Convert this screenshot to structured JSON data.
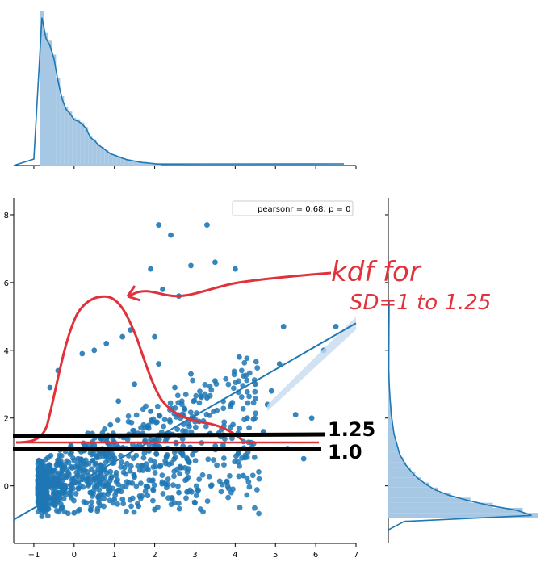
{
  "colors": {
    "scatter": "#1f77b4",
    "hist_fill": "#a6c8e4",
    "kde_line": "#1f77b4",
    "ci_band": "#c6dbef",
    "annotation_red": "#e0323a",
    "annotation_black": "#000000"
  },
  "chart_data": [
    {
      "type": "scatter",
      "title": "",
      "xlabel": "",
      "ylabel": "",
      "xlim": [
        -1.5,
        7.0
      ],
      "ylim": [
        -1.7,
        8.5
      ],
      "xticks": [
        -1,
        0,
        1,
        2,
        3,
        4,
        5,
        6,
        7
      ],
      "yticks": [
        0,
        2,
        4,
        6,
        8
      ],
      "legend_text": "pearsonr = 0.68; p = 0",
      "legend_position": "top-right",
      "regression_line": {
        "x": [
          -1.5,
          7.0
        ],
        "y": [
          -1.0,
          4.8
        ]
      },
      "points": [
        [
          -0.8,
          -0.9
        ],
        [
          -0.5,
          -0.3
        ],
        [
          -0.2,
          0.3
        ],
        [
          0.1,
          0.8
        ],
        [
          0.3,
          -0.5
        ],
        [
          0.5,
          1.2
        ],
        [
          0.7,
          0.2
        ],
        [
          0.9,
          1.8
        ],
        [
          1.1,
          2.5
        ],
        [
          1.3,
          1.1
        ],
        [
          1.5,
          3.0
        ],
        [
          1.7,
          0.6
        ],
        [
          1.9,
          2.2
        ],
        [
          2.1,
          3.6
        ],
        [
          2.3,
          1.4
        ],
        [
          2.5,
          2.9
        ],
        [
          2.7,
          0.9
        ],
        [
          2.9,
          3.3
        ],
        [
          3.1,
          1.9
        ],
        [
          3.3,
          2.6
        ],
        [
          3.5,
          3.1
        ],
        [
          3.7,
          1.2
        ],
        [
          3.9,
          2.4
        ],
        [
          4.1,
          3.8
        ],
        [
          4.3,
          2.0
        ],
        [
          4.5,
          3.0
        ],
        [
          4.7,
          1.6
        ],
        [
          4.9,
          2.8
        ],
        [
          5.1,
          3.6
        ],
        [
          5.3,
          1.1
        ],
        [
          5.5,
          2.1
        ],
        [
          5.7,
          0.8
        ],
        [
          5.9,
          2.0
        ],
        [
          6.2,
          4.0
        ],
        [
          6.5,
          4.7
        ],
        [
          -0.6,
          2.9
        ],
        [
          -0.4,
          3.4
        ],
        [
          0.2,
          3.9
        ],
        [
          0.5,
          4.0
        ],
        [
          0.8,
          4.2
        ],
        [
          1.2,
          4.4
        ],
        [
          1.4,
          4.6
        ],
        [
          2.0,
          4.4
        ],
        [
          2.2,
          5.8
        ],
        [
          2.6,
          5.6
        ],
        [
          2.9,
          6.5
        ],
        [
          3.3,
          7.7
        ],
        [
          3.5,
          6.6
        ],
        [
          4.0,
          6.4
        ],
        [
          2.1,
          7.7
        ],
        [
          1.9,
          6.4
        ],
        [
          2.4,
          7.4
        ],
        [
          4.8,
          2.4
        ],
        [
          5.2,
          4.7
        ],
        [
          0.0,
          -0.8
        ],
        [
          0.4,
          -0.2
        ],
        [
          0.6,
          0.5
        ],
        [
          1.0,
          -0.4
        ],
        [
          1.6,
          -0.6
        ],
        [
          2.0,
          -0.7
        ],
        [
          2.6,
          -0.2
        ],
        [
          3.0,
          -0.5
        ],
        [
          3.4,
          0.0
        ],
        [
          4.2,
          0.3
        ]
      ]
    },
    {
      "type": "bar",
      "title": "",
      "xlabel": "",
      "ylabel": "",
      "xlim": [
        -1.5,
        7.0
      ],
      "bins_start": -0.85,
      "bin_width": 0.1,
      "values": [
        1.0,
        0.86,
        0.81,
        0.72,
        0.57,
        0.45,
        0.38,
        0.35,
        0.31,
        0.3,
        0.28,
        0.25,
        0.19,
        0.17,
        0.14,
        0.12,
        0.1,
        0.08,
        0.07,
        0.06,
        0.05,
        0.04,
        0.035,
        0.03,
        0.025,
        0.02,
        0.018,
        0.015,
        0.012,
        0.01
      ],
      "xticks": [
        -1,
        0,
        1,
        2,
        3,
        4,
        5,
        6,
        7
      ]
    },
    {
      "type": "bar",
      "title": "",
      "xlabel": "",
      "ylabel": "",
      "ylim": [
        -1.7,
        8.5
      ],
      "orientation": "horizontal",
      "bins_start": -0.95,
      "bin_width": 0.15,
      "values": [
        1.0,
        0.9,
        0.7,
        0.55,
        0.42,
        0.33,
        0.27,
        0.22,
        0.18,
        0.15,
        0.12,
        0.1,
        0.08,
        0.07,
        0.06,
        0.05,
        0.04,
        0.035,
        0.03,
        0.025,
        0.02,
        0.018,
        0.015,
        0.012,
        0.01,
        0.008,
        0.006,
        0.005,
        0.004,
        0.003
      ]
    }
  ],
  "annotations": {
    "kdf_label": "kdf for",
    "sd_label": "SD=1 to 1.25",
    "line_upper_label": "1.25",
    "line_lower_label": "1.0"
  }
}
